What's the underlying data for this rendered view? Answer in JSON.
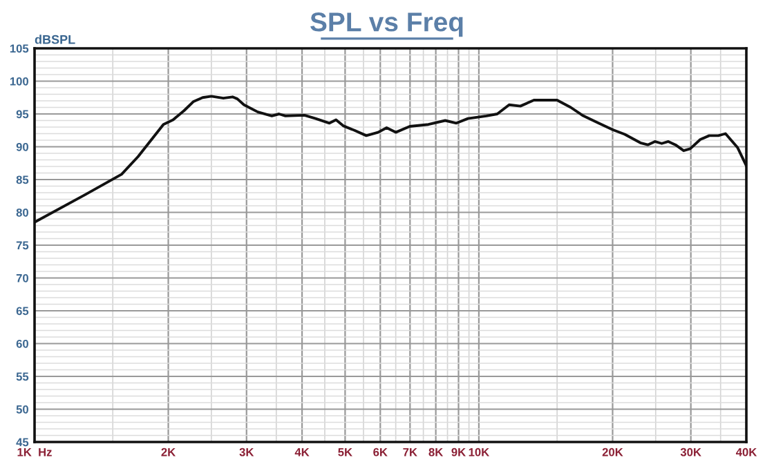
{
  "chart_data": {
    "type": "line",
    "title": "SPL vs Freq",
    "ylabel": "dBSPL",
    "log": "x",
    "grid": true,
    "marker": "none",
    "line_style": "solid",
    "xlim": [
      1000,
      40000
    ],
    "ylim": [
      45,
      105
    ],
    "xticks": [
      {
        "value": 1000,
        "label": "1K  Hz"
      },
      {
        "value": 1500,
        "label": null
      },
      {
        "value": 2000,
        "label": "2K"
      },
      {
        "value": 2500,
        "label": null
      },
      {
        "value": 3000,
        "label": "3K"
      },
      {
        "value": 3500,
        "label": null
      },
      {
        "value": 4000,
        "label": "4K"
      },
      {
        "value": 4500,
        "label": null
      },
      {
        "value": 5000,
        "label": "5K"
      },
      {
        "value": 5500,
        "label": null
      },
      {
        "value": 6000,
        "label": "6K"
      },
      {
        "value": 6500,
        "label": null
      },
      {
        "value": 7000,
        "label": "7K"
      },
      {
        "value": 7500,
        "label": null
      },
      {
        "value": 8000,
        "label": "8K"
      },
      {
        "value": 8500,
        "label": null
      },
      {
        "value": 9000,
        "label": "9K"
      },
      {
        "value": 9500,
        "label": null
      },
      {
        "value": 10000,
        "label": "10K"
      },
      {
        "value": 15000,
        "label": null
      },
      {
        "value": 20000,
        "label": "20K"
      },
      {
        "value": 25000,
        "label": null
      },
      {
        "value": 30000,
        "label": "30K"
      },
      {
        "value": 35000,
        "label": null
      },
      {
        "value": 40000,
        "label": "40K"
      }
    ],
    "yticks": [
      45,
      {
        "value": 46,
        "label": null
      },
      {
        "value": 47,
        "label": null
      },
      {
        "value": 48,
        "label": null
      },
      {
        "value": 49,
        "label": null
      },
      50,
      {
        "value": 51,
        "label": null
      },
      {
        "value": 52,
        "label": null
      },
      {
        "value": 53,
        "label": null
      },
      {
        "value": 54,
        "label": null
      },
      55,
      {
        "value": 56,
        "label": null
      },
      {
        "value": 57,
        "label": null
      },
      {
        "value": 58,
        "label": null
      },
      {
        "value": 59,
        "label": null
      },
      60,
      {
        "value": 61,
        "label": null
      },
      {
        "value": 62,
        "label": null
      },
      {
        "value": 63,
        "label": null
      },
      {
        "value": 64,
        "label": null
      },
      65,
      {
        "value": 66,
        "label": null
      },
      {
        "value": 67,
        "label": null
      },
      {
        "value": 68,
        "label": null
      },
      {
        "value": 69,
        "label": null
      },
      70,
      {
        "value": 71,
        "label": null
      },
      {
        "value": 72,
        "label": null
      },
      {
        "value": 73,
        "label": null
      },
      {
        "value": 74,
        "label": null
      },
      75,
      {
        "value": 76,
        "label": null
      },
      {
        "value": 77,
        "label": null
      },
      {
        "value": 78,
        "label": null
      },
      {
        "value": 79,
        "label": null
      },
      80,
      {
        "value": 81,
        "label": null
      },
      {
        "value": 82,
        "label": null
      },
      {
        "value": 83,
        "label": null
      },
      {
        "value": 84,
        "label": null
      },
      85,
      {
        "value": 86,
        "label": null
      },
      {
        "value": 87,
        "label": null
      },
      {
        "value": 88,
        "label": null
      },
      {
        "value": 89,
        "label": null
      },
      90,
      {
        "value": 91,
        "label": null
      },
      {
        "value": 92,
        "label": null
      },
      {
        "value": 93,
        "label": null
      },
      {
        "value": 94,
        "label": null
      },
      95,
      {
        "value": 96,
        "label": null
      },
      {
        "value": 97,
        "label": null
      },
      {
        "value": 98,
        "label": null
      },
      {
        "value": 99,
        "label": null
      },
      100,
      {
        "value": 101,
        "label": null
      },
      {
        "value": 102,
        "label": null
      },
      {
        "value": 103,
        "label": null
      },
      {
        "value": 104,
        "label": null
      },
      105
    ],
    "series": [
      {
        "color": "#111111",
        "x": [
          1000,
          1300,
          1570,
          1710,
          1950,
          2050,
          2170,
          2280,
          2390,
          2500,
          2660,
          2790,
          2860,
          2960,
          3180,
          3420,
          3550,
          3670,
          4050,
          4290,
          4610,
          4770,
          4950,
          5250,
          5580,
          5930,
          6200,
          6500,
          6990,
          7700,
          8400,
          8900,
          9450,
          10400,
          11000,
          11700,
          12400,
          13300,
          15000,
          16100,
          17100,
          18600,
          20000,
          21300,
          23100,
          24000,
          24900,
          25800,
          26700,
          27700,
          28900,
          29900,
          31500,
          33000,
          34600,
          35900,
          38200,
          40000
        ],
        "values": [
          78.5,
          82.7,
          85.8,
          88.5,
          93.4,
          94.1,
          95.5,
          96.9,
          97.5,
          97.7,
          97.4,
          97.6,
          97.3,
          96.4,
          95.3,
          94.7,
          95.0,
          94.7,
          94.8,
          94.3,
          93.6,
          94.1,
          93.2,
          92.5,
          91.7,
          92.2,
          92.9,
          92.2,
          93.1,
          93.4,
          94.0,
          93.6,
          94.3,
          94.7,
          95.0,
          96.4,
          96.2,
          97.1,
          97.1,
          96.0,
          94.8,
          93.6,
          92.6,
          91.9,
          90.6,
          90.3,
          90.8,
          90.5,
          90.8,
          90.3,
          89.4,
          89.7,
          91.1,
          91.7,
          91.7,
          92.0,
          89.9,
          87.1
        ]
      }
    ]
  }
}
